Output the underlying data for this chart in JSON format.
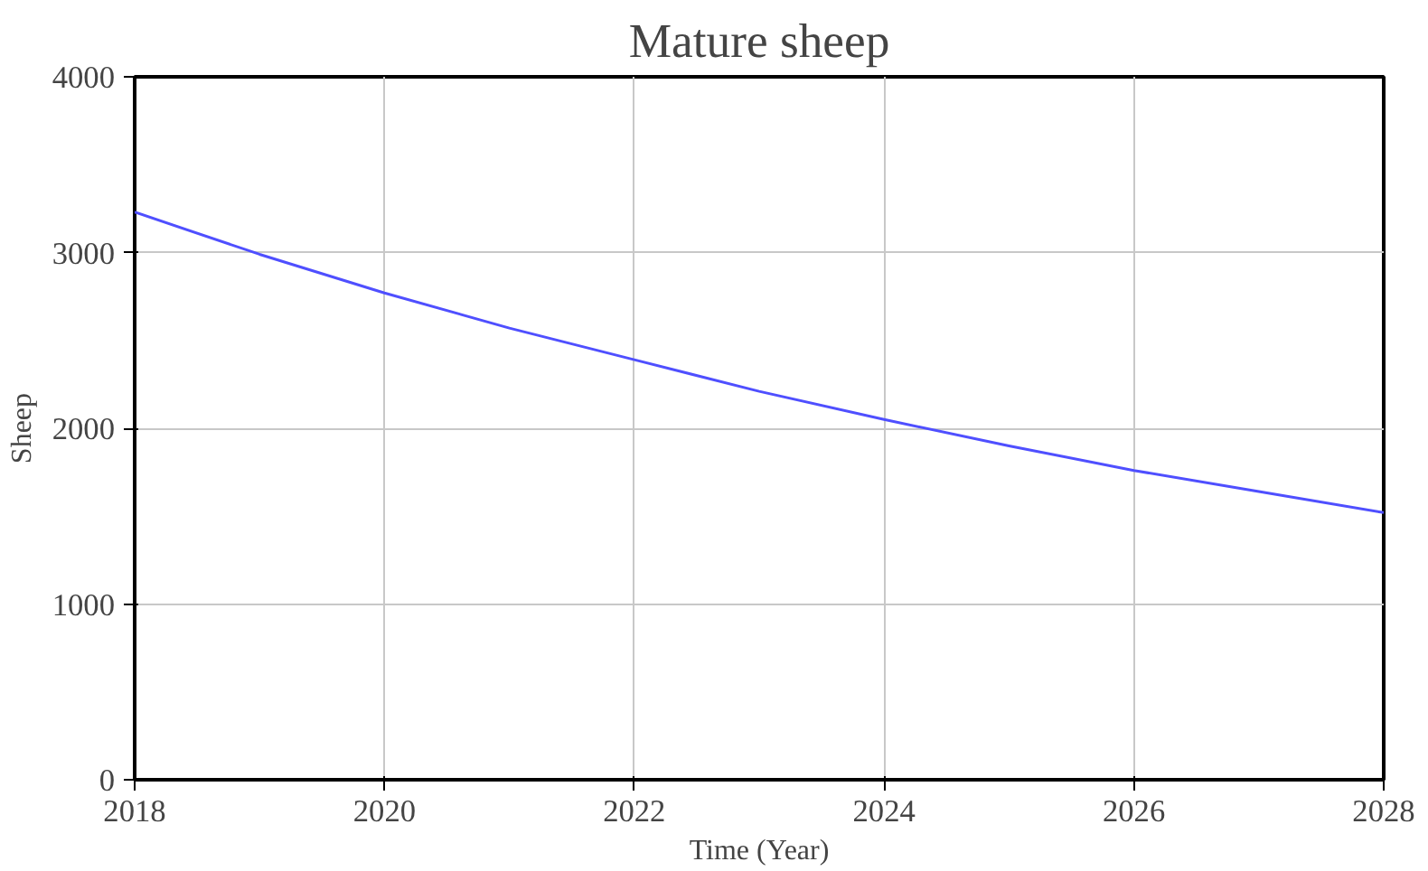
{
  "chart_data": {
    "type": "line",
    "title": "Mature sheep",
    "xlabel": "Time (Year)",
    "ylabel": "Sheep",
    "x": [
      2018,
      2019,
      2020,
      2021,
      2022,
      2023,
      2024,
      2025,
      2026,
      2027,
      2028
    ],
    "series": [
      {
        "color": "#4f4fff",
        "values": [
          3230,
          2990,
          2770,
          2570,
          2390,
          2210,
          2050,
          1900,
          1760,
          1640,
          1520
        ]
      }
    ],
    "xlim": [
      2018,
      2028
    ],
    "ylim": [
      0,
      4000
    ],
    "xticks": [
      2018,
      2020,
      2022,
      2024,
      2026,
      2028
    ],
    "yticks": [
      0,
      1000,
      2000,
      3000,
      4000
    ],
    "grid": true,
    "marker": "none",
    "line_style": "solid"
  }
}
